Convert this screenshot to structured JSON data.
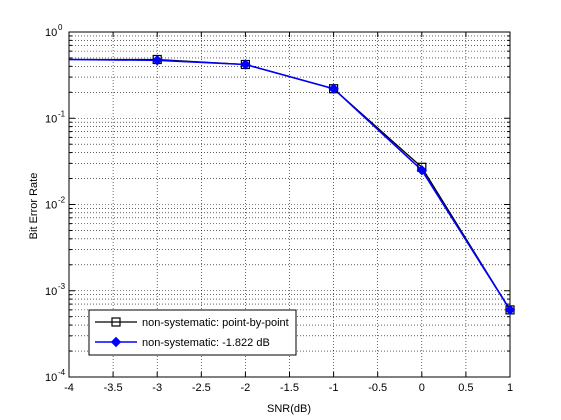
{
  "chart_data": {
    "type": "line",
    "title": "",
    "xlabel": "SNR(dB)",
    "ylabel": "Bit Error Rate",
    "xlim": [
      -4,
      1
    ],
    "ylim": [
      0.0001,
      1
    ],
    "yscale": "log",
    "grid": true,
    "grid_style": "dotted",
    "legend_position": "bottom-left",
    "x_tick_labels": [
      "-4",
      "-3.5",
      "-3",
      "-2.5",
      "-2",
      "-1.5",
      "-1",
      "-0.5",
      "0",
      "0.5",
      "1"
    ],
    "y_tick_labels": [
      {
        "base": "10",
        "exp": "-4"
      },
      {
        "base": "10",
        "exp": "-3"
      },
      {
        "base": "10",
        "exp": "-2"
      },
      {
        "base": "10",
        "exp": "-1"
      },
      {
        "base": "10",
        "exp": "0"
      }
    ],
    "series": [
      {
        "name": "non-systematic: point-by-point",
        "color": "#000000",
        "marker": "square",
        "x": [
          -4,
          -3,
          -2,
          -1,
          0,
          1
        ],
        "y": [
          0.48,
          0.48,
          0.42,
          0.22,
          0.027,
          0.0006
        ]
      },
      {
        "name": "non-systematic: -1.822 dB",
        "color": "#0000ff",
        "marker": "diamond-filled",
        "x": [
          -4,
          -3,
          -2,
          -1,
          0,
          1
        ],
        "y": [
          0.48,
          0.47,
          0.42,
          0.22,
          0.025,
          0.0006
        ]
      }
    ]
  }
}
